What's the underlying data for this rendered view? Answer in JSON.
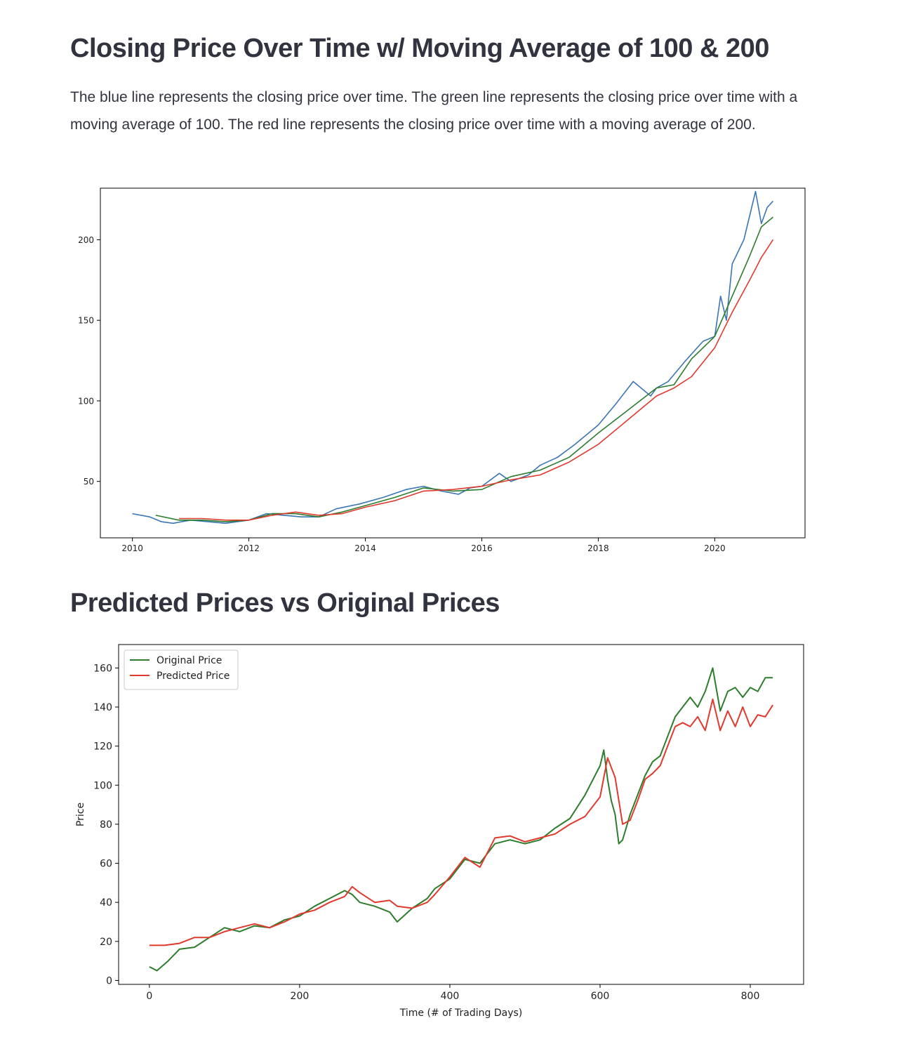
{
  "section1": {
    "title": "Closing Price Over Time w/ Moving Average of 100 & 200",
    "description": "The blue line represents the closing price over time. The green line represents the closing price over time with a moving average of 100. The red line represents the closing price over time with a moving average of 200."
  },
  "section2": {
    "title": "Predicted Prices vs Original Prices"
  },
  "chart_data": [
    {
      "type": "line",
      "title": "",
      "xlabel": "",
      "ylabel": "",
      "xlim": [
        2009.45,
        2021.55
      ],
      "ylim": [
        15,
        232
      ],
      "xticks": [
        2010,
        2012,
        2014,
        2016,
        2018,
        2020
      ],
      "xtick_labels": [
        "2010",
        "2012",
        "2014",
        "2016",
        "2018",
        "2020"
      ],
      "yticks": [
        50,
        100,
        150,
        200
      ],
      "ytick_labels": [
        "50",
        "100",
        "150",
        "200"
      ],
      "grid": false,
      "legend": "none",
      "series": [
        {
          "color": "#3a76b3",
          "x": [
            2010.0,
            2010.3,
            2010.5,
            2010.7,
            2011.0,
            2011.3,
            2011.6,
            2012.0,
            2012.3,
            2012.6,
            2012.9,
            2013.2,
            2013.5,
            2013.9,
            2014.3,
            2014.7,
            2015.0,
            2015.3,
            2015.6,
            2015.8,
            2016.0,
            2016.3,
            2016.5,
            2016.8,
            2017.0,
            2017.3,
            2017.6,
            2018.0,
            2018.3,
            2018.6,
            2018.9,
            2019.0,
            2019.2,
            2019.5,
            2019.8,
            2020.0,
            2020.1,
            2020.2,
            2020.3,
            2020.5,
            2020.6,
            2020.7,
            2020.8,
            2020.9,
            2021.0
          ],
          "y": [
            30,
            28,
            25,
            24,
            26,
            25,
            24,
            26,
            30,
            29,
            28,
            28,
            33,
            36,
            40,
            45,
            47,
            44,
            42,
            46,
            47,
            55,
            50,
            54,
            60,
            65,
            73,
            85,
            98,
            112,
            103,
            108,
            112,
            125,
            137,
            140,
            165,
            150,
            185,
            200,
            215,
            230,
            210,
            220,
            224
          ]
        },
        {
          "color": "#2d7d2d",
          "x": [
            2010.4,
            2010.8,
            2011.2,
            2011.6,
            2012.0,
            2012.4,
            2012.8,
            2013.2,
            2013.6,
            2014.0,
            2014.5,
            2015.0,
            2015.5,
            2016.0,
            2016.5,
            2017.0,
            2017.5,
            2018.0,
            2018.5,
            2019.0,
            2019.3,
            2019.6,
            2020.0,
            2020.3,
            2020.6,
            2020.8,
            2021.0
          ],
          "y": [
            29,
            26,
            26,
            25,
            26,
            30,
            30,
            28,
            31,
            35,
            40,
            46,
            44,
            45,
            53,
            57,
            65,
            80,
            94,
            108,
            110,
            126,
            140,
            165,
            190,
            208,
            214
          ]
        },
        {
          "color": "#e03a2e",
          "x": [
            2010.8,
            2011.2,
            2011.6,
            2012.0,
            2012.4,
            2012.8,
            2013.2,
            2013.6,
            2014.0,
            2014.5,
            2015.0,
            2015.5,
            2016.0,
            2016.5,
            2017.0,
            2017.5,
            2018.0,
            2018.5,
            2019.0,
            2019.3,
            2019.6,
            2020.0,
            2020.3,
            2020.6,
            2020.8,
            2021.0
          ],
          "y": [
            27,
            27,
            26,
            26,
            29,
            31,
            29,
            30,
            34,
            38,
            44,
            45,
            47,
            51,
            54,
            62,
            73,
            88,
            103,
            108,
            115,
            133,
            155,
            175,
            189,
            200
          ]
        }
      ]
    },
    {
      "type": "line",
      "title": "",
      "xlabel": "Time (# of Trading Days)",
      "ylabel": "Price",
      "xlim": [
        -41,
        871
      ],
      "ylim": [
        -2,
        172
      ],
      "xticks": [
        0,
        200,
        400,
        600,
        800
      ],
      "xtick_labels": [
        "0",
        "200",
        "400",
        "600",
        "800"
      ],
      "yticks": [
        0,
        20,
        40,
        60,
        80,
        100,
        120,
        140,
        160
      ],
      "ytick_labels": [
        "0",
        "20",
        "40",
        "60",
        "80",
        "100",
        "120",
        "140",
        "160"
      ],
      "grid": false,
      "legend": "top-left",
      "series": [
        {
          "name": "Original Price",
          "color": "#2d7d2d",
          "x": [
            0,
            10,
            25,
            40,
            60,
            80,
            100,
            120,
            140,
            160,
            180,
            200,
            220,
            240,
            260,
            270,
            280,
            300,
            320,
            330,
            350,
            370,
            380,
            400,
            420,
            440,
            460,
            480,
            500,
            520,
            540,
            560,
            580,
            600,
            605,
            610,
            615,
            620,
            625,
            630,
            640,
            650,
            660,
            670,
            680,
            690,
            700,
            710,
            720,
            730,
            740,
            750,
            760,
            770,
            780,
            790,
            800,
            810,
            820,
            830
          ],
          "y": [
            7,
            5,
            10,
            16,
            17,
            22,
            27,
            25,
            28,
            27,
            31,
            33,
            38,
            42,
            46,
            44,
            40,
            38,
            35,
            30,
            37,
            42,
            47,
            52,
            62,
            60,
            70,
            72,
            70,
            72,
            78,
            83,
            95,
            110,
            118,
            103,
            92,
            85,
            70,
            72,
            85,
            95,
            105,
            112,
            115,
            125,
            135,
            140,
            145,
            140,
            148,
            160,
            138,
            148,
            150,
            145,
            150,
            148,
            155,
            155
          ]
        },
        {
          "name": "Predicted Price",
          "color": "#e03a2e",
          "x": [
            0,
            20,
            40,
            60,
            80,
            100,
            120,
            140,
            160,
            180,
            200,
            220,
            240,
            260,
            270,
            280,
            300,
            320,
            330,
            350,
            370,
            380,
            400,
            420,
            440,
            460,
            480,
            500,
            520,
            540,
            560,
            580,
            600,
            610,
            620,
            630,
            640,
            650,
            660,
            670,
            680,
            690,
            700,
            710,
            720,
            730,
            740,
            750,
            760,
            770,
            780,
            790,
            800,
            810,
            820,
            830
          ],
          "y": [
            18,
            18,
            19,
            22,
            22,
            25,
            27,
            29,
            27,
            30,
            34,
            36,
            40,
            43,
            48,
            45,
            40,
            41,
            38,
            37,
            40,
            44,
            53,
            63,
            58,
            73,
            74,
            71,
            73,
            75,
            80,
            84,
            94,
            114,
            104,
            80,
            82,
            92,
            103,
            106,
            110,
            120,
            130,
            132,
            130,
            135,
            128,
            144,
            128,
            138,
            130,
            140,
            130,
            136,
            135,
            141
          ]
        }
      ]
    }
  ]
}
